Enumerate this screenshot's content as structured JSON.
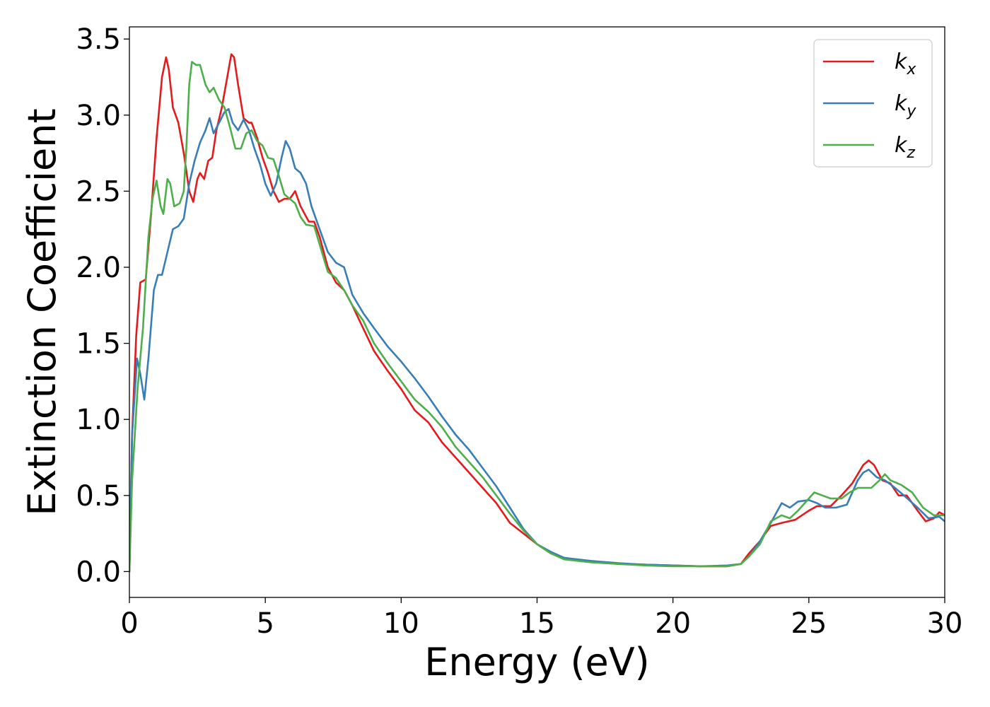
{
  "chart_data": {
    "type": "line",
    "title": "",
    "xlabel": "Energy (eV)",
    "ylabel": "Extinction Coefficient",
    "xlim": [
      0,
      30
    ],
    "ylim": [
      -0.17,
      3.58
    ],
    "xticks": [
      0,
      5,
      10,
      15,
      20,
      25,
      30
    ],
    "xtick_labels": [
      "0",
      "5",
      "10",
      "15",
      "20",
      "25",
      "30"
    ],
    "yticks": [
      0.0,
      0.5,
      1.0,
      1.5,
      2.0,
      2.5,
      3.0,
      3.5
    ],
    "ytick_labels": [
      "0.0",
      "0.5",
      "1.0",
      "1.5",
      "2.0",
      "2.5",
      "3.0",
      "3.5"
    ],
    "grid": false,
    "legend_position": "top-right",
    "series": [
      {
        "name": "k",
        "subscript": "x",
        "color": "#e41a1c",
        "points": [
          [
            0,
            0.0
          ],
          [
            0.1,
            0.9
          ],
          [
            0.25,
            1.55
          ],
          [
            0.4,
            1.9
          ],
          [
            0.6,
            1.92
          ],
          [
            0.8,
            2.35
          ],
          [
            1.0,
            2.85
          ],
          [
            1.2,
            3.25
          ],
          [
            1.35,
            3.38
          ],
          [
            1.45,
            3.3
          ],
          [
            1.6,
            3.05
          ],
          [
            1.8,
            2.95
          ],
          [
            2.0,
            2.75
          ],
          [
            2.2,
            2.5
          ],
          [
            2.35,
            2.43
          ],
          [
            2.5,
            2.58
          ],
          [
            2.6,
            2.62
          ],
          [
            2.75,
            2.58
          ],
          [
            2.9,
            2.7
          ],
          [
            3.05,
            2.72
          ],
          [
            3.2,
            2.9
          ],
          [
            3.4,
            3.05
          ],
          [
            3.6,
            3.25
          ],
          [
            3.75,
            3.4
          ],
          [
            3.85,
            3.38
          ],
          [
            4.0,
            3.2
          ],
          [
            4.2,
            2.98
          ],
          [
            4.4,
            2.95
          ],
          [
            4.5,
            2.95
          ],
          [
            4.7,
            2.85
          ],
          [
            4.9,
            2.72
          ],
          [
            5.1,
            2.62
          ],
          [
            5.3,
            2.5
          ],
          [
            5.5,
            2.43
          ],
          [
            5.7,
            2.45
          ],
          [
            5.9,
            2.45
          ],
          [
            6.1,
            2.5
          ],
          [
            6.3,
            2.4
          ],
          [
            6.6,
            2.3
          ],
          [
            6.8,
            2.3
          ],
          [
            7.0,
            2.2
          ],
          [
            7.3,
            2.0
          ],
          [
            7.6,
            1.9
          ],
          [
            7.9,
            1.85
          ],
          [
            8.2,
            1.75
          ],
          [
            8.6,
            1.6
          ],
          [
            9.0,
            1.45
          ],
          [
            9.5,
            1.32
          ],
          [
            10.0,
            1.2
          ],
          [
            10.5,
            1.06
          ],
          [
            11.0,
            0.98
          ],
          [
            11.5,
            0.85
          ],
          [
            12.0,
            0.75
          ],
          [
            12.5,
            0.65
          ],
          [
            13.0,
            0.55
          ],
          [
            13.5,
            0.45
          ],
          [
            14.0,
            0.32
          ],
          [
            14.5,
            0.25
          ],
          [
            15.0,
            0.18
          ],
          [
            15.5,
            0.12
          ],
          [
            16.0,
            0.09
          ],
          [
            17.0,
            0.065
          ],
          [
            18.0,
            0.05
          ],
          [
            19.0,
            0.045
          ],
          [
            20.0,
            0.04
          ],
          [
            21.0,
            0.035
          ],
          [
            22.0,
            0.035
          ],
          [
            22.5,
            0.05
          ],
          [
            22.8,
            0.12
          ],
          [
            23.2,
            0.2
          ],
          [
            23.6,
            0.3
          ],
          [
            24.0,
            0.32
          ],
          [
            24.5,
            0.34
          ],
          [
            25.0,
            0.4
          ],
          [
            25.3,
            0.43
          ],
          [
            25.8,
            0.43
          ],
          [
            26.2,
            0.5
          ],
          [
            26.6,
            0.58
          ],
          [
            27.0,
            0.7
          ],
          [
            27.2,
            0.73
          ],
          [
            27.4,
            0.7
          ],
          [
            27.7,
            0.6
          ],
          [
            28.0,
            0.58
          ],
          [
            28.3,
            0.5
          ],
          [
            28.6,
            0.5
          ],
          [
            29.0,
            0.4
          ],
          [
            29.3,
            0.33
          ],
          [
            29.6,
            0.35
          ],
          [
            29.8,
            0.39
          ],
          [
            30.0,
            0.37
          ]
        ]
      },
      {
        "name": "k",
        "subscript": "y",
        "color": "#377eb8",
        "points": [
          [
            0,
            0.0
          ],
          [
            0.1,
            0.9
          ],
          [
            0.28,
            1.4
          ],
          [
            0.4,
            1.3
          ],
          [
            0.55,
            1.13
          ],
          [
            0.7,
            1.4
          ],
          [
            0.9,
            1.85
          ],
          [
            1.05,
            1.95
          ],
          [
            1.2,
            1.95
          ],
          [
            1.4,
            2.1
          ],
          [
            1.6,
            2.25
          ],
          [
            1.8,
            2.27
          ],
          [
            2.0,
            2.32
          ],
          [
            2.2,
            2.55
          ],
          [
            2.4,
            2.7
          ],
          [
            2.6,
            2.82
          ],
          [
            2.8,
            2.9
          ],
          [
            2.95,
            2.98
          ],
          [
            3.1,
            2.88
          ],
          [
            3.3,
            2.95
          ],
          [
            3.5,
            3.02
          ],
          [
            3.65,
            3.04
          ],
          [
            3.8,
            2.95
          ],
          [
            4.0,
            2.9
          ],
          [
            4.2,
            2.97
          ],
          [
            4.4,
            2.9
          ],
          [
            4.6,
            2.78
          ],
          [
            4.8,
            2.68
          ],
          [
            5.0,
            2.55
          ],
          [
            5.2,
            2.47
          ],
          [
            5.4,
            2.55
          ],
          [
            5.6,
            2.72
          ],
          [
            5.75,
            2.83
          ],
          [
            5.9,
            2.78
          ],
          [
            6.1,
            2.65
          ],
          [
            6.3,
            2.62
          ],
          [
            6.5,
            2.55
          ],
          [
            6.7,
            2.4
          ],
          [
            7.0,
            2.25
          ],
          [
            7.3,
            2.1
          ],
          [
            7.6,
            2.03
          ],
          [
            7.9,
            2.0
          ],
          [
            8.2,
            1.82
          ],
          [
            8.6,
            1.7
          ],
          [
            9.0,
            1.6
          ],
          [
            9.5,
            1.48
          ],
          [
            10.0,
            1.38
          ],
          [
            10.5,
            1.27
          ],
          [
            11.0,
            1.15
          ],
          [
            11.5,
            1.02
          ],
          [
            12.0,
            0.9
          ],
          [
            12.5,
            0.8
          ],
          [
            13.0,
            0.68
          ],
          [
            13.5,
            0.56
          ],
          [
            14.0,
            0.42
          ],
          [
            14.5,
            0.28
          ],
          [
            15.0,
            0.18
          ],
          [
            15.5,
            0.13
          ],
          [
            16.0,
            0.09
          ],
          [
            17.0,
            0.07
          ],
          [
            18.0,
            0.055
          ],
          [
            19.0,
            0.045
          ],
          [
            20.0,
            0.04
          ],
          [
            21.0,
            0.035
          ],
          [
            22.0,
            0.04
          ],
          [
            22.5,
            0.05
          ],
          [
            22.8,
            0.1
          ],
          [
            23.2,
            0.2
          ],
          [
            23.6,
            0.32
          ],
          [
            24.0,
            0.45
          ],
          [
            24.3,
            0.42
          ],
          [
            24.6,
            0.46
          ],
          [
            25.0,
            0.47
          ],
          [
            25.3,
            0.45
          ],
          [
            25.6,
            0.42
          ],
          [
            26.0,
            0.42
          ],
          [
            26.4,
            0.44
          ],
          [
            26.8,
            0.6
          ],
          [
            27.0,
            0.65
          ],
          [
            27.2,
            0.67
          ],
          [
            27.5,
            0.62
          ],
          [
            27.8,
            0.6
          ],
          [
            28.1,
            0.56
          ],
          [
            28.5,
            0.5
          ],
          [
            29.0,
            0.42
          ],
          [
            29.4,
            0.35
          ],
          [
            29.8,
            0.36
          ],
          [
            30.0,
            0.33
          ]
        ]
      },
      {
        "name": "k",
        "subscript": "z",
        "color": "#4daf4a",
        "points": [
          [
            0,
            0.0
          ],
          [
            0.1,
            0.6
          ],
          [
            0.3,
            1.2
          ],
          [
            0.5,
            1.6
          ],
          [
            0.7,
            2.2
          ],
          [
            0.85,
            2.45
          ],
          [
            1.0,
            2.57
          ],
          [
            1.15,
            2.4
          ],
          [
            1.25,
            2.35
          ],
          [
            1.4,
            2.58
          ],
          [
            1.5,
            2.55
          ],
          [
            1.65,
            2.4
          ],
          [
            1.85,
            2.42
          ],
          [
            2.0,
            2.5
          ],
          [
            2.1,
            2.8
          ],
          [
            2.2,
            3.2
          ],
          [
            2.3,
            3.35
          ],
          [
            2.45,
            3.33
          ],
          [
            2.6,
            3.33
          ],
          [
            2.8,
            3.2
          ],
          [
            2.95,
            3.15
          ],
          [
            3.1,
            3.18
          ],
          [
            3.3,
            3.1
          ],
          [
            3.5,
            3.05
          ],
          [
            3.7,
            2.92
          ],
          [
            3.9,
            2.78
          ],
          [
            4.1,
            2.78
          ],
          [
            4.3,
            2.88
          ],
          [
            4.5,
            2.9
          ],
          [
            4.7,
            2.83
          ],
          [
            4.9,
            2.8
          ],
          [
            5.1,
            2.72
          ],
          [
            5.3,
            2.71
          ],
          [
            5.5,
            2.6
          ],
          [
            5.7,
            2.48
          ],
          [
            5.9,
            2.45
          ],
          [
            6.1,
            2.42
          ],
          [
            6.3,
            2.33
          ],
          [
            6.5,
            2.28
          ],
          [
            6.8,
            2.27
          ],
          [
            7.0,
            2.15
          ],
          [
            7.3,
            1.97
          ],
          [
            7.6,
            1.93
          ],
          [
            7.9,
            1.85
          ],
          [
            8.2,
            1.75
          ],
          [
            8.6,
            1.65
          ],
          [
            9.0,
            1.5
          ],
          [
            9.5,
            1.37
          ],
          [
            10.0,
            1.25
          ],
          [
            10.5,
            1.13
          ],
          [
            11.0,
            1.05
          ],
          [
            11.5,
            0.95
          ],
          [
            12.0,
            0.82
          ],
          [
            12.5,
            0.72
          ],
          [
            13.0,
            0.62
          ],
          [
            13.5,
            0.5
          ],
          [
            14.0,
            0.38
          ],
          [
            14.5,
            0.27
          ],
          [
            15.0,
            0.18
          ],
          [
            15.5,
            0.12
          ],
          [
            16.0,
            0.08
          ],
          [
            17.0,
            0.06
          ],
          [
            18.0,
            0.05
          ],
          [
            19.0,
            0.04
          ],
          [
            20.0,
            0.035
          ],
          [
            21.0,
            0.035
          ],
          [
            22.0,
            0.035
          ],
          [
            22.5,
            0.05
          ],
          [
            22.8,
            0.1
          ],
          [
            23.2,
            0.18
          ],
          [
            23.6,
            0.33
          ],
          [
            24.0,
            0.37
          ],
          [
            24.3,
            0.35
          ],
          [
            24.6,
            0.4
          ],
          [
            25.0,
            0.48
          ],
          [
            25.2,
            0.52
          ],
          [
            25.5,
            0.5
          ],
          [
            25.8,
            0.48
          ],
          [
            26.2,
            0.48
          ],
          [
            26.5,
            0.52
          ],
          [
            26.8,
            0.55
          ],
          [
            27.0,
            0.55
          ],
          [
            27.3,
            0.55
          ],
          [
            27.6,
            0.6
          ],
          [
            27.8,
            0.64
          ],
          [
            28.0,
            0.6
          ],
          [
            28.4,
            0.57
          ],
          [
            28.8,
            0.52
          ],
          [
            29.2,
            0.42
          ],
          [
            29.6,
            0.37
          ],
          [
            30.0,
            0.37
          ]
        ]
      }
    ]
  }
}
